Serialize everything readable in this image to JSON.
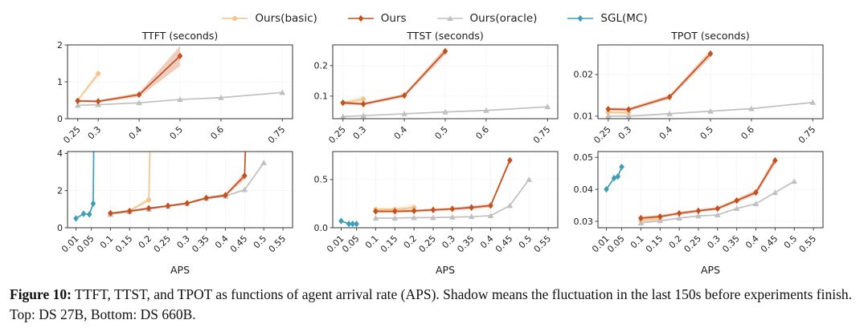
{
  "legend": {
    "position": "top",
    "items": [
      {
        "label": "Ours(basic)",
        "color": "#f2c48c",
        "marker": "circle"
      },
      {
        "label": "Ours",
        "color": "#c4501e",
        "marker": "diamond"
      },
      {
        "label": "Ours(oracle)",
        "color": "#c0c0c0",
        "marker": "triangle"
      },
      {
        "label": "SGL(MC)",
        "color": "#3d9fb5",
        "marker": "diamond"
      }
    ]
  },
  "caption": {
    "label": "Figure 10:",
    "text": " TTFT, TTST, and TPOT as functions of agent arrival rate (APS). Shadow means the fluctuation in the last 150s before experiments finish. Top: DS 27B, Bottom: DS 660B."
  },
  "chart_data": [
    {
      "type": "line",
      "title": "TTFT (seconds)",
      "xlabel": "",
      "grid": true,
      "xlim": [
        0.225,
        0.775
      ],
      "ylim": [
        0,
        2
      ],
      "xticks": [
        0.25,
        0.3,
        0.4,
        0.5,
        0.6,
        0.75
      ],
      "xtick_labels": [
        "0.25",
        "0.3",
        "0.4",
        "0.5",
        "0.6",
        "0.75"
      ],
      "yticks": [
        0,
        1,
        2
      ],
      "ytick_labels": [
        "0",
        "1",
        "2"
      ],
      "series": [
        {
          "name": "Ours(basic)",
          "x": [
            0.25,
            0.3
          ],
          "y": [
            0.5,
            1.22
          ],
          "band": [
            0.03,
            0.1
          ]
        },
        {
          "name": "Ours(oracle)",
          "x": [
            0.25,
            0.3,
            0.4,
            0.5,
            0.6,
            0.75
          ],
          "y": [
            0.36,
            0.38,
            0.43,
            0.52,
            0.57,
            0.71
          ]
        },
        {
          "name": "Ours",
          "x": [
            0.25,
            0.3,
            0.4,
            0.5
          ],
          "y": [
            0.48,
            0.47,
            0.65,
            1.7
          ],
          "band": [
            0.03,
            0.03,
            0.06,
            0.27
          ]
        }
      ]
    },
    {
      "type": "line",
      "title": "TTST (seconds)",
      "xlabel": "",
      "grid": true,
      "xlim": [
        0.225,
        0.775
      ],
      "ylim": [
        0.026,
        0.268
      ],
      "xticks": [
        0.25,
        0.3,
        0.4,
        0.5,
        0.6,
        0.75
      ],
      "xtick_labels": [
        "0.25",
        "0.3",
        "0.4",
        "0.5",
        "0.6",
        "0.75"
      ],
      "yticks": [
        0.1,
        0.2
      ],
      "ytick_labels": [
        "0.1",
        "0.2"
      ],
      "series": [
        {
          "name": "Ours(basic)",
          "x": [
            0.25,
            0.3
          ],
          "y": [
            0.078,
            0.09
          ],
          "band": [
            0.005,
            0.012
          ]
        },
        {
          "name": "Ours(oracle)",
          "x": [
            0.25,
            0.3,
            0.4,
            0.5,
            0.6,
            0.75
          ],
          "y": [
            0.033,
            0.036,
            0.042,
            0.048,
            0.053,
            0.065
          ]
        },
        {
          "name": "Ours",
          "x": [
            0.25,
            0.3,
            0.4,
            0.5
          ],
          "y": [
            0.078,
            0.074,
            0.102,
            0.247
          ],
          "band": [
            0.005,
            0.005,
            0.006,
            0.012
          ]
        }
      ]
    },
    {
      "type": "line",
      "title": "TPOT (seconds)",
      "xlabel": "",
      "grid": true,
      "xlim": [
        0.225,
        0.775
      ],
      "ylim": [
        0.0094,
        0.0271
      ],
      "xticks": [
        0.25,
        0.3,
        0.4,
        0.5,
        0.6,
        0.75
      ],
      "xtick_labels": [
        "0.25",
        "0.3",
        "0.4",
        "0.5",
        "0.6",
        "0.75"
      ],
      "yticks": [
        0.01,
        0.02
      ],
      "ytick_labels": [
        "0.01",
        "0.02"
      ],
      "series": [
        {
          "name": "Ours(basic)",
          "x": [
            0.25,
            0.3
          ],
          "y": [
            0.0109,
            0.0108
          ],
          "band": [
            0.0004,
            0.0005
          ]
        },
        {
          "name": "Ours(oracle)",
          "x": [
            0.25,
            0.3,
            0.4,
            0.5,
            0.6,
            0.75
          ],
          "y": [
            0.01,
            0.01,
            0.0106,
            0.0112,
            0.0118,
            0.0133
          ]
        },
        {
          "name": "Ours",
          "x": [
            0.25,
            0.3,
            0.4,
            0.5
          ],
          "y": [
            0.0117,
            0.0116,
            0.0146,
            0.025
          ],
          "band": [
            0.0004,
            0.0004,
            0.0005,
            0.0009
          ]
        }
      ]
    },
    {
      "type": "line",
      "title": "",
      "xlabel": "APS",
      "grid": true,
      "xlim": [
        -0.012,
        0.575
      ],
      "ylim": [
        0,
        4.1
      ],
      "xticks": [
        0.01,
        0.05,
        0.1,
        0.15,
        0.2,
        0.25,
        0.3,
        0.35,
        0.4,
        0.45,
        0.5,
        0.55
      ],
      "xtick_labels": [
        "0.01",
        "0.05",
        "0.1",
        "0.15",
        "0.2",
        "0.25",
        "0.3",
        "0.35",
        "0.4",
        "0.45",
        "0.5",
        "0.55"
      ],
      "yticks": [
        0,
        2,
        4
      ],
      "ytick_labels": [
        "0",
        "2",
        "4"
      ],
      "series": [
        {
          "name": "Ours(basic)",
          "x": [
            0.1,
            0.15,
            0.2,
            0.212
          ],
          "y": [
            0.78,
            0.92,
            1.5,
            12
          ],
          "band": [
            0.05,
            0.06,
            0.15,
            0
          ]
        },
        {
          "name": "Ours(oracle)",
          "x": [
            0.1,
            0.15,
            0.2,
            0.25,
            0.3,
            0.35,
            0.4,
            0.45,
            0.5
          ],
          "y": [
            0.72,
            0.86,
            1.0,
            1.15,
            1.3,
            1.58,
            1.7,
            2.05,
            3.5
          ]
        },
        {
          "name": "Ours",
          "x": [
            0.1,
            0.15,
            0.2,
            0.25,
            0.3,
            0.35,
            0.4,
            0.45,
            0.463
          ],
          "y": [
            0.78,
            0.9,
            1.05,
            1.18,
            1.32,
            1.6,
            1.75,
            2.8,
            12
          ],
          "band": [
            0.04,
            0.04,
            0.05,
            0.05,
            0.06,
            0.07,
            0.08,
            0.2,
            0
          ]
        },
        {
          "name": "SGL(MC)",
          "x": [
            0.01,
            0.03,
            0.045,
            0.055,
            0.06
          ],
          "y": [
            0.5,
            0.75,
            0.72,
            1.3,
            12
          ]
        }
      ]
    },
    {
      "type": "line",
      "title": "",
      "xlabel": "APS",
      "grid": true,
      "xlim": [
        -0.012,
        0.575
      ],
      "ylim": [
        0,
        0.79
      ],
      "xticks": [
        0.01,
        0.05,
        0.1,
        0.15,
        0.2,
        0.25,
        0.3,
        0.35,
        0.4,
        0.45,
        0.5,
        0.55
      ],
      "xtick_labels": [
        "0.01",
        "0.05",
        "0.1",
        "0.15",
        "0.2",
        "0.25",
        "0.3",
        "0.35",
        "0.4",
        "0.45",
        "0.5",
        "0.55"
      ],
      "yticks": [
        0.0,
        0.5
      ],
      "ytick_labels": [
        "0.0",
        "0.5"
      ],
      "series": [
        {
          "name": "Ours(basic)",
          "x": [
            0.1,
            0.15,
            0.2
          ],
          "y": [
            0.19,
            0.19,
            0.21
          ],
          "band": [
            0.02,
            0.02,
            0.04
          ]
        },
        {
          "name": "Ours(oracle)",
          "x": [
            0.1,
            0.15,
            0.2,
            0.25,
            0.3,
            0.35,
            0.4,
            0.45,
            0.5
          ],
          "y": [
            0.1,
            0.1,
            0.105,
            0.105,
            0.11,
            0.115,
            0.125,
            0.23,
            0.5
          ]
        },
        {
          "name": "Ours",
          "x": [
            0.1,
            0.15,
            0.2,
            0.25,
            0.3,
            0.35,
            0.4,
            0.45
          ],
          "y": [
            0.17,
            0.17,
            0.175,
            0.185,
            0.195,
            0.21,
            0.23,
            0.7
          ],
          "band": [
            0.015,
            0.015,
            0.015,
            0.015,
            0.015,
            0.02,
            0.02,
            0.03
          ]
        },
        {
          "name": "SGL(MC)",
          "x": [
            0.01,
            0.03,
            0.04,
            0.05
          ],
          "y": [
            0.07,
            0.04,
            0.04,
            0.04
          ]
        }
      ]
    },
    {
      "type": "line",
      "title": "",
      "xlabel": "APS",
      "grid": true,
      "xlim": [
        -0.012,
        0.575
      ],
      "ylim": [
        0.028,
        0.0518
      ],
      "xticks": [
        0.01,
        0.05,
        0.1,
        0.15,
        0.2,
        0.25,
        0.3,
        0.35,
        0.4,
        0.45,
        0.5,
        0.55
      ],
      "xtick_labels": [
        "0.01",
        "0.05",
        "0.1",
        "0.15",
        "0.2",
        "0.25",
        "0.3",
        "0.35",
        "0.4",
        "0.45",
        "0.5",
        "0.55"
      ],
      "yticks": [
        0.03,
        0.04,
        0.05
      ],
      "ytick_labels": [
        "0.03",
        "0.04",
        "0.05"
      ],
      "series": [
        {
          "name": "Ours(basic)",
          "x": [
            0.1,
            0.15
          ],
          "y": [
            0.0302,
            0.0308
          ],
          "band": [
            0.0006,
            0.0006
          ]
        },
        {
          "name": "Ours(oracle)",
          "x": [
            0.1,
            0.15,
            0.2,
            0.25,
            0.3,
            0.35,
            0.4,
            0.45,
            0.5
          ],
          "y": [
            0.0295,
            0.0302,
            0.031,
            0.0317,
            0.032,
            0.034,
            0.0355,
            0.039,
            0.0425
          ]
        },
        {
          "name": "Ours",
          "x": [
            0.1,
            0.15,
            0.2,
            0.25,
            0.3,
            0.35,
            0.4,
            0.45
          ],
          "y": [
            0.031,
            0.0315,
            0.0325,
            0.0333,
            0.034,
            0.0365,
            0.039,
            0.049
          ],
          "band": [
            0.0005,
            0.0005,
            0.0005,
            0.0005,
            0.0005,
            0.0006,
            0.0008,
            0.0012
          ]
        },
        {
          "name": "SGL(MC)",
          "x": [
            0.01,
            0.03,
            0.04,
            0.05
          ],
          "y": [
            0.04,
            0.0435,
            0.044,
            0.047
          ]
        }
      ]
    }
  ]
}
